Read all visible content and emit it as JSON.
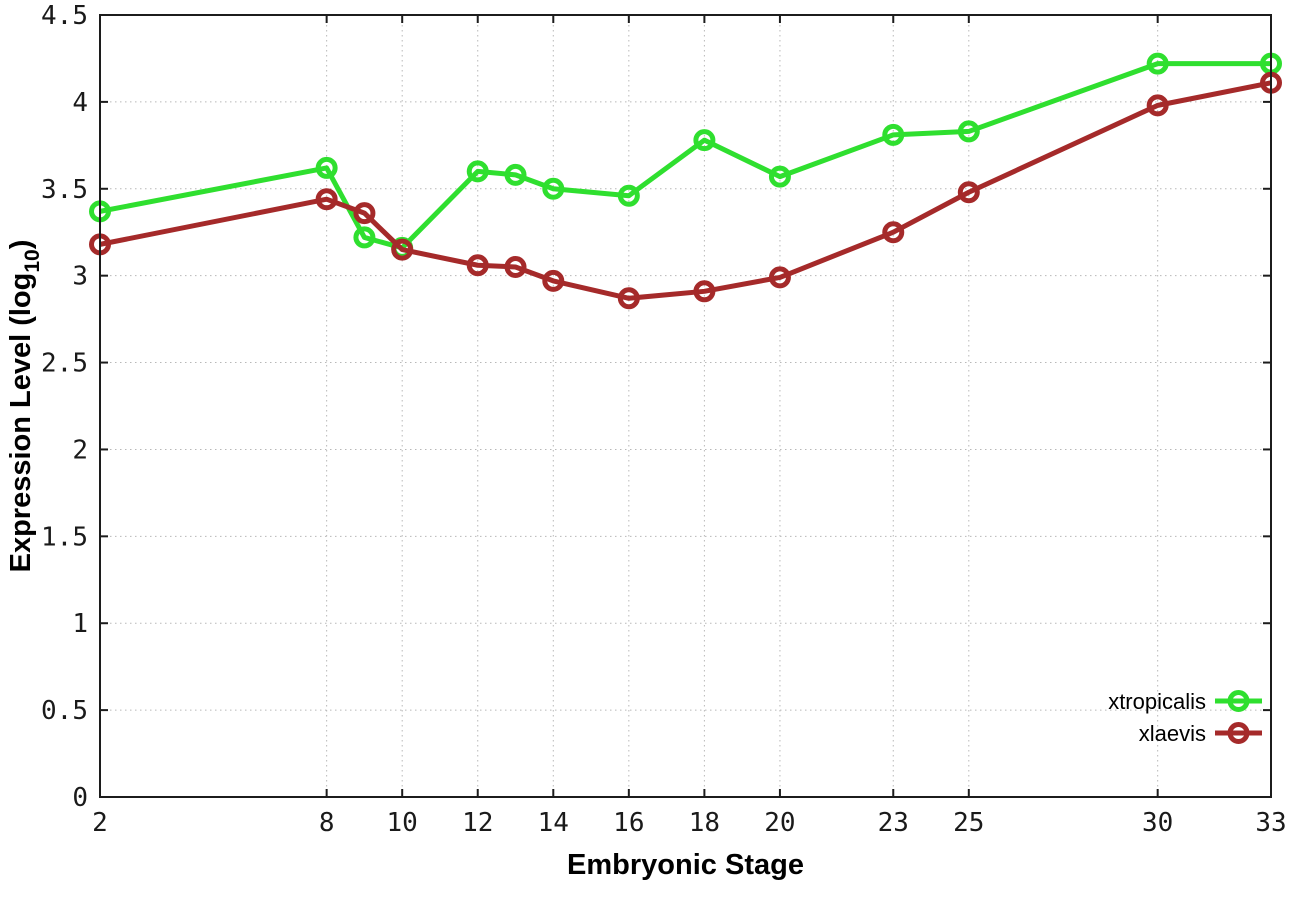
{
  "chart_data": {
    "type": "line",
    "title": "",
    "xlabel": "Embryonic Stage",
    "ylabel_pre": "Expression Level (log",
    "ylabel_sub": "10",
    "ylabel_post": ")",
    "xlim": [
      2,
      33
    ],
    "ylim": [
      0,
      4.5
    ],
    "grid": true,
    "legend_position": "bottom-right-inside",
    "x_ticks": [
      2,
      8,
      10,
      12,
      14,
      16,
      18,
      20,
      23,
      25,
      30,
      33
    ],
    "x_tick_labels": [
      "2",
      "8",
      "10",
      "12",
      "14",
      "16",
      "18",
      "20",
      "23",
      "25",
      "30",
      "33"
    ],
    "y_ticks": [
      0,
      0.5,
      1,
      1.5,
      2,
      2.5,
      3,
      3.5,
      4,
      4.5
    ],
    "y_tick_labels": [
      "0",
      "0.5",
      "1",
      "1.5",
      "2",
      "2.5",
      "3",
      "3.5",
      "4",
      "4.5"
    ],
    "x": [
      2,
      8,
      9,
      10,
      12,
      13,
      14,
      16,
      18,
      20,
      23,
      25,
      30,
      33
    ],
    "series": [
      {
        "name": "xtropicalis",
        "color": "#2fdf2f",
        "values": [
          3.37,
          3.62,
          3.22,
          3.16,
          3.6,
          3.58,
          3.5,
          3.46,
          3.78,
          3.57,
          3.81,
          3.83,
          4.22,
          4.22
        ]
      },
      {
        "name": "xlaevis",
        "color": "#a52a2a",
        "values": [
          3.18,
          3.44,
          3.36,
          3.15,
          3.06,
          3.05,
          2.97,
          2.87,
          2.91,
          2.99,
          3.25,
          3.48,
          3.98,
          4.11
        ]
      }
    ],
    "colors": {
      "border": "#1c1c1c",
      "grid": "#b8b8b8",
      "tick_text": "#1a1a1a",
      "background": "#ffffff"
    }
  }
}
